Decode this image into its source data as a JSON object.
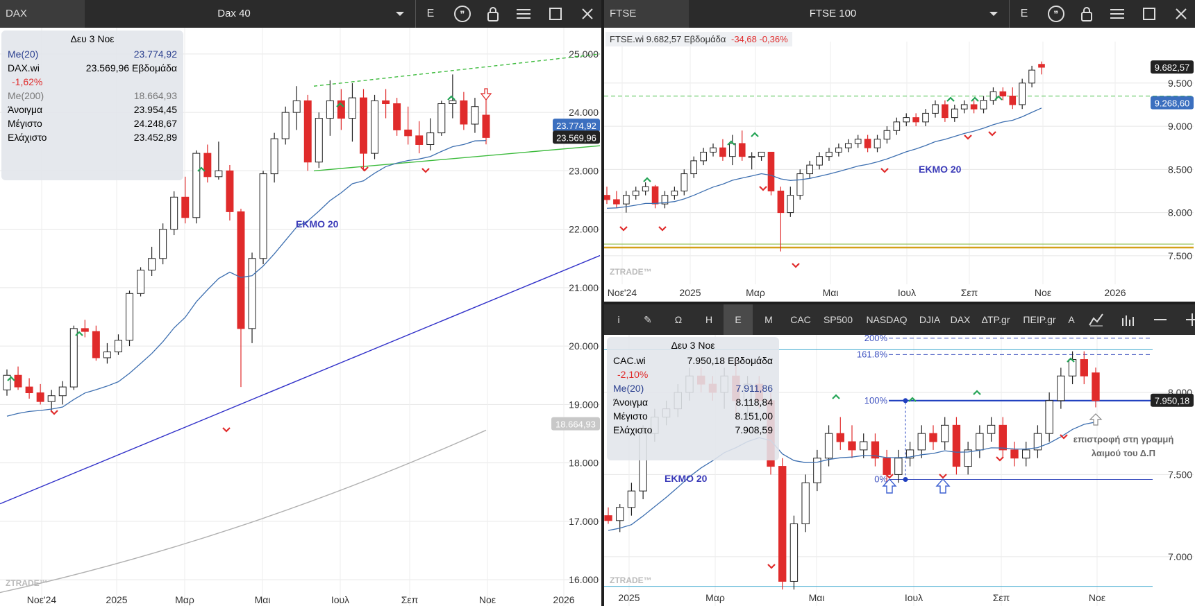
{
  "left_panel": {
    "symbol": "DAX",
    "title": "Dax 40",
    "period_button": "E",
    "info": {
      "date": "Δευ 3 Νοε",
      "rows": [
        {
          "k": "Me(20)",
          "v": "23.774,92",
          "color": "#2a3f8f"
        },
        {
          "k": "DAX.wi",
          "v": "23.569,96 Εβδομάδα",
          "color": "#000"
        },
        {
          "k": "-1,62%",
          "v": "",
          "color": "#e02b2b"
        },
        {
          "k": "Me(200)",
          "v": "18.664,93",
          "color": "#777"
        },
        {
          "k": "Άνοιγμα",
          "v": "23.954,45",
          "color": "#000"
        },
        {
          "k": "Μέγιστο",
          "v": "24.248,67",
          "color": "#000"
        },
        {
          "k": "Ελάχιστο",
          "v": "23.452,89",
          "color": "#000"
        }
      ]
    },
    "ema_label": "ΕΚΜΟ 20",
    "watermark": "ZTRADE™",
    "price_labels": [
      {
        "text": "23.774,92",
        "bg": "#3b6fbf"
      },
      {
        "text": "23.569,96",
        "bg": "#222"
      },
      {
        "text": "18.664,93",
        "bg": "#c8c8c8"
      }
    ],
    "chart_data": {
      "type": "candlestick",
      "title": "Dax 40",
      "yticks": [
        "25.000",
        "24.000",
        "23.000",
        "22.000",
        "21.000",
        "20.000",
        "19.000",
        "18.000",
        "17.000",
        "16.000"
      ],
      "ytick_values": [
        25000,
        24000,
        23000,
        22000,
        21000,
        20000,
        19000,
        18000,
        17000,
        16000
      ],
      "ylim": [
        15550,
        25450
      ],
      "xticks": [
        "Νοε'24",
        "2025",
        "Μαρ",
        "Μαι",
        "Ιουλ",
        "Σεπ",
        "Νοε",
        "2026"
      ],
      "series": [
        {
          "name": "DAX.wi",
          "last": 23569.96
        },
        {
          "name": "Me(20)",
          "last": 23774.92
        },
        {
          "name": "Me(200)",
          "last": 18664.93
        }
      ],
      "candles": [
        [
          19250,
          19600,
          19150,
          19500
        ],
        [
          19500,
          19650,
          19250,
          19300
        ],
        [
          19300,
          19450,
          19100,
          19200
        ],
        [
          19200,
          19350,
          19000,
          19050
        ],
        [
          19050,
          19250,
          18900,
          19150
        ],
        [
          19150,
          19400,
          19000,
          19300
        ],
        [
          19300,
          20350,
          19250,
          20300
        ],
        [
          20300,
          20450,
          20150,
          20250
        ],
        [
          20250,
          20350,
          19750,
          19800
        ],
        [
          19800,
          20050,
          19700,
          19900
        ],
        [
          19900,
          20200,
          19850,
          20100
        ],
        [
          20100,
          20950,
          20000,
          20900
        ],
        [
          20900,
          21350,
          20850,
          21300
        ],
        [
          21300,
          21700,
          21200,
          21500
        ],
        [
          21500,
          22100,
          21400,
          22000
        ],
        [
          22000,
          22650,
          21900,
          22550
        ],
        [
          22550,
          22900,
          22100,
          22200
        ],
        [
          22200,
          23350,
          22100,
          23300
        ],
        [
          23300,
          23450,
          22800,
          22900
        ],
        [
          22900,
          23500,
          22850,
          23000
        ],
        [
          23000,
          23100,
          22150,
          22300
        ],
        [
          22300,
          22350,
          19300,
          20300
        ],
        [
          20300,
          21600,
          20050,
          21500
        ],
        [
          21500,
          23000,
          21400,
          22950
        ],
        [
          22950,
          23650,
          22800,
          23550
        ],
        [
          23550,
          24100,
          23450,
          24000
        ],
        [
          24000,
          24450,
          23700,
          24200
        ],
        [
          24200,
          24300,
          23000,
          23150
        ],
        [
          23150,
          24000,
          23050,
          23900
        ],
        [
          23900,
          24550,
          23600,
          24200
        ],
        [
          24200,
          24400,
          23700,
          23900
        ],
        [
          23900,
          24500,
          23500,
          24250
        ],
        [
          24250,
          24400,
          23000,
          23300
        ],
        [
          23300,
          24300,
          23200,
          24200
        ],
        [
          24200,
          24400,
          23900,
          24150
        ],
        [
          24150,
          24250,
          23600,
          23700
        ],
        [
          23700,
          24100,
          23450,
          23600
        ],
        [
          23600,
          23850,
          23300,
          23450
        ],
        [
          23450,
          23900,
          23350,
          23650
        ],
        [
          23650,
          24200,
          23600,
          24150
        ],
        [
          24150,
          24650,
          23900,
          24200
        ],
        [
          24200,
          24350,
          23700,
          23800
        ],
        [
          23800,
          24250,
          23650,
          24100
        ],
        [
          23954,
          24249,
          23453,
          23570
        ]
      ]
    }
  },
  "right_top_panel": {
    "symbol": "FTSE",
    "title": "FTSE 100",
    "period_button": "E",
    "legend": {
      "name": "FTSE.wi",
      "value": "9.682,57",
      "period": "Εβδομάδα",
      "change": "-34,68 -0,36%"
    },
    "ema_label": "ΕΚΜΟ 20",
    "watermark": "ZTRADE™",
    "price_labels": [
      {
        "text": "9.682,57",
        "bg": "#222"
      },
      {
        "text": "9.268,60",
        "bg": "#3b6fbf"
      }
    ],
    "chart_data": {
      "type": "candlestick",
      "title": "FTSE 100",
      "yticks": [
        "9.500",
        "9.000",
        "8.500",
        "8.000",
        "7.500"
      ],
      "ytick_values": [
        9500,
        9000,
        8500,
        8000,
        7500
      ],
      "ylim": [
        7250,
        9900
      ],
      "xticks": [
        "Νοε'24",
        "2025",
        "Μαρ",
        "Μαι",
        "Ιουλ",
        "Σεπ",
        "Νοε",
        "2026"
      ],
      "series": [
        {
          "name": "FTSE.wi",
          "last": 9682.57
        },
        {
          "name": "EMA20",
          "last": 9268.6
        }
      ],
      "candles": [
        [
          8200,
          8300,
          8100,
          8150
        ],
        [
          8150,
          8250,
          8050,
          8100
        ],
        [
          8100,
          8250,
          8000,
          8200
        ],
        [
          8200,
          8300,
          8150,
          8250
        ],
        [
          8250,
          8350,
          8200,
          8300
        ],
        [
          8300,
          8320,
          8050,
          8100
        ],
        [
          8100,
          8250,
          8050,
          8200
        ],
        [
          8200,
          8300,
          8150,
          8250
        ],
        [
          8250,
          8500,
          8200,
          8450
        ],
        [
          8450,
          8650,
          8400,
          8600
        ],
        [
          8600,
          8750,
          8550,
          8700
        ],
        [
          8700,
          8800,
          8650,
          8750
        ],
        [
          8750,
          8850,
          8600,
          8650
        ],
        [
          8650,
          8900,
          8550,
          8800
        ],
        [
          8800,
          8950,
          8600,
          8650
        ],
        [
          8650,
          8700,
          8500,
          8650
        ],
        [
          8650,
          8700,
          8600,
          8700
        ],
        [
          8700,
          8700,
          8200,
          8250
        ],
        [
          8250,
          8300,
          7550,
          8000
        ],
        [
          8000,
          8300,
          7950,
          8200
        ],
        [
          8200,
          8500,
          8150,
          8450
        ],
        [
          8450,
          8600,
          8400,
          8550
        ],
        [
          8550,
          8700,
          8500,
          8650
        ],
        [
          8650,
          8750,
          8600,
          8700
        ],
        [
          8700,
          8800,
          8650,
          8750
        ],
        [
          8750,
          8850,
          8700,
          8800
        ],
        [
          8800,
          8900,
          8750,
          8850
        ],
        [
          8850,
          8900,
          8700,
          8750
        ],
        [
          8750,
          8900,
          8700,
          8850
        ],
        [
          8850,
          9000,
          8800,
          8950
        ],
        [
          8950,
          9100,
          8900,
          9050
        ],
        [
          9050,
          9150,
          9000,
          9100
        ],
        [
          9100,
          9150,
          9000,
          9050
        ],
        [
          9050,
          9200,
          9000,
          9150
        ],
        [
          9150,
          9300,
          9100,
          9250
        ],
        [
          9250,
          9300,
          9050,
          9100
        ],
        [
          9100,
          9250,
          9050,
          9200
        ],
        [
          9200,
          9300,
          9150,
          9250
        ],
        [
          9250,
          9300,
          9150,
          9200
        ],
        [
          9200,
          9350,
          9150,
          9300
        ],
        [
          9300,
          9450,
          9250,
          9400
        ],
        [
          9400,
          9450,
          9300,
          9350
        ],
        [
          9350,
          9450,
          9200,
          9250
        ],
        [
          9250,
          9550,
          9200,
          9500
        ],
        [
          9500,
          9700,
          9450,
          9650
        ],
        [
          9717,
          9750,
          9600,
          9683
        ]
      ]
    }
  },
  "right_bottom_panel": {
    "toolbar": [
      "i",
      "✎",
      "Ω",
      "H",
      "E",
      "M",
      "CAC",
      "SP500",
      "NASDAQ",
      "DJIA",
      "DAX",
      "ΔΤΡ.gr",
      "ΠΕΙΡ.gr",
      "A"
    ],
    "toolbar_active": "E",
    "info": {
      "date": "Δευ 3 Νοε",
      "rows": [
        {
          "k": "CAC.wi",
          "v": "7.950,18 Εβδομάδα",
          "color": "#000"
        },
        {
          "k": "-2,10%",
          "v": "",
          "color": "#e02b2b"
        },
        {
          "k": "Me(20)",
          "v": "7.911,86",
          "color": "#2a3f8f"
        },
        {
          "k": "Άνοιγμα",
          "v": "8.118,84",
          "color": "#000"
        },
        {
          "k": "Μέγιστο",
          "v": "8.151,00",
          "color": "#000"
        },
        {
          "k": "Ελάχιστο",
          "v": "7.908,59",
          "color": "#000"
        }
      ]
    },
    "ema_label": "ΕΚΜΟ 20",
    "watermark": "ZTRADE™",
    "fib_labels": [
      "200%",
      "161.8%",
      "100%",
      "0%"
    ],
    "annotation": "επιστροφή στη γραμμή λαιμού του Δ.Π",
    "price_labels": [
      {
        "text": "7.950,18",
        "bg": "#222"
      }
    ],
    "chart_data": {
      "type": "candlestick",
      "title": "CAC",
      "yticks": [
        "8.000",
        "7.500",
        "7.000"
      ],
      "ytick_values": [
        8000,
        7500,
        7000
      ],
      "ylim": [
        6700,
        8350
      ],
      "xticks": [
        "2025",
        "Μαρ",
        "Μαι",
        "Ιουλ",
        "Σεπ",
        "Νοε"
      ],
      "series": [
        {
          "name": "CAC.wi",
          "last": 7950.18
        },
        {
          "name": "Me(20)",
          "last": 7911.86
        }
      ],
      "candles": [
        [
          7250,
          7300,
          7200,
          7220
        ],
        [
          7220,
          7320,
          7150,
          7300
        ],
        [
          7300,
          7450,
          7250,
          7400
        ],
        [
          7400,
          7800,
          7350,
          7750
        ],
        [
          7750,
          7900,
          7700,
          7850
        ],
        [
          7850,
          7950,
          7800,
          7900
        ],
        [
          7900,
          8050,
          7850,
          8000
        ],
        [
          8000,
          8150,
          7950,
          8100
        ],
        [
          8100,
          8150,
          8000,
          8050
        ],
        [
          8050,
          8100,
          7950,
          8000
        ],
        [
          8000,
          8150,
          7900,
          8100
        ],
        [
          8100,
          8200,
          7850,
          7950
        ],
        [
          7950,
          8100,
          7850,
          8050
        ],
        [
          8050,
          8100,
          7900,
          7950
        ],
        [
          7950,
          8000,
          7500,
          7550
        ],
        [
          7550,
          7600,
          6800,
          6850
        ],
        [
          6850,
          7250,
          6800,
          7200
        ],
        [
          7200,
          7500,
          7150,
          7450
        ],
        [
          7450,
          7650,
          7400,
          7600
        ],
        [
          7600,
          7800,
          7550,
          7750
        ],
        [
          7750,
          7850,
          7650,
          7700
        ],
        [
          7700,
          7800,
          7600,
          7650
        ],
        [
          7650,
          7750,
          7600,
          7700
        ],
        [
          7700,
          7750,
          7550,
          7600
        ],
        [
          7600,
          7650,
          7450,
          7500
        ],
        [
          7500,
          7650,
          7450,
          7600
        ],
        [
          7600,
          7700,
          7550,
          7650
        ],
        [
          7650,
          7800,
          7600,
          7750
        ],
        [
          7750,
          7800,
          7650,
          7700
        ],
        [
          7700,
          7850,
          7650,
          7800
        ],
        [
          7800,
          7850,
          7500,
          7550
        ],
        [
          7550,
          7700,
          7500,
          7650
        ],
        [
          7650,
          7800,
          7600,
          7750
        ],
        [
          7750,
          7850,
          7700,
          7800
        ],
        [
          7800,
          7850,
          7600,
          7650
        ],
        [
          7650,
          7700,
          7550,
          7600
        ],
        [
          7600,
          7700,
          7550,
          7650
        ],
        [
          7650,
          7800,
          7600,
          7750
        ],
        [
          7750,
          8000,
          7700,
          7950
        ],
        [
          7950,
          8150,
          7900,
          8100
        ],
        [
          8100,
          8250,
          8050,
          8200
        ],
        [
          8200,
          8250,
          8050,
          8100
        ],
        [
          8119,
          8151,
          7909,
          7950
        ]
      ]
    }
  }
}
